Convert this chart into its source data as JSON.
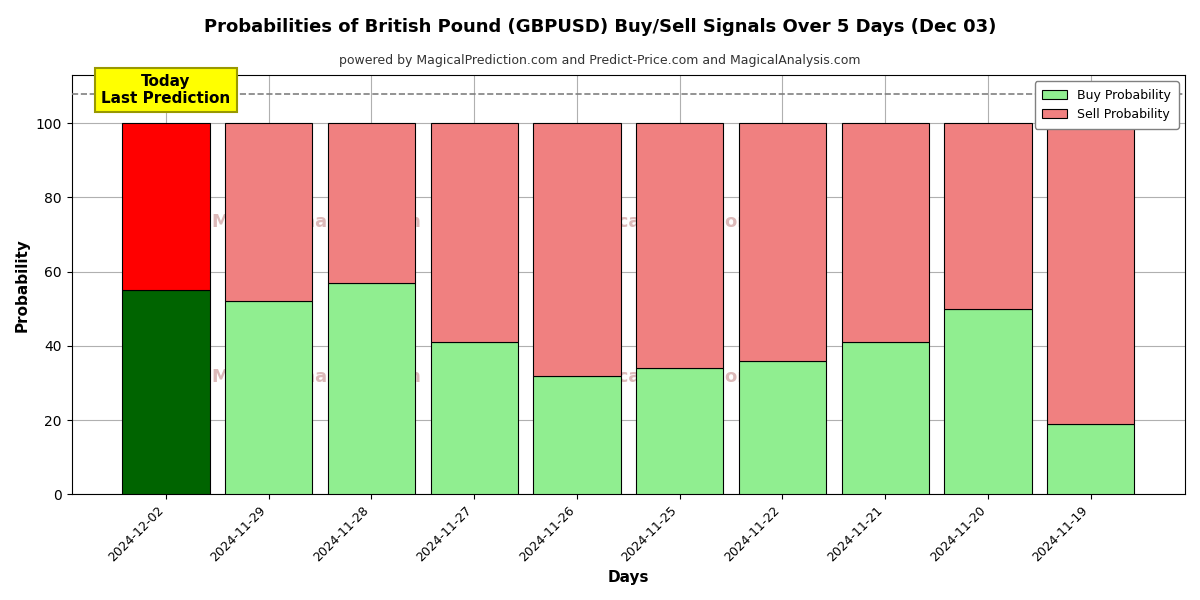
{
  "title": "Probabilities of British Pound (GBPUSD) Buy/Sell Signals Over 5 Days (Dec 03)",
  "subtitle": "powered by MagicalPrediction.com and Predict-Price.com and MagicalAnalysis.com",
  "xlabel": "Days",
  "ylabel": "Probability",
  "categories": [
    "2024-12-02",
    "2024-11-29",
    "2024-11-28",
    "2024-11-27",
    "2024-11-26",
    "2024-11-25",
    "2024-11-22",
    "2024-11-21",
    "2024-11-20",
    "2024-11-19"
  ],
  "buy_values": [
    55,
    52,
    57,
    41,
    32,
    34,
    36,
    41,
    50,
    19
  ],
  "sell_values": [
    45,
    48,
    43,
    59,
    68,
    66,
    64,
    59,
    50,
    81
  ],
  "buy_color_today": "#006400",
  "sell_color_today": "#ff0000",
  "buy_color_normal": "#90ee90",
  "sell_color_normal": "#f08080",
  "bar_edge_color": "#000000",
  "today_annotation_bg": "#ffff00",
  "today_annotation_text": "Today\nLast Prediction",
  "legend_buy": "Buy Probability",
  "legend_sell": "Sell Probability",
  "ylim": [
    0,
    113
  ],
  "yticks": [
    0,
    20,
    40,
    60,
    80,
    100
  ],
  "dashed_line_y": 108,
  "watermark_color": "#d0a0a0",
  "background_color": "#ffffff",
  "grid_color": "#b0b0b0",
  "bar_width": 0.85
}
